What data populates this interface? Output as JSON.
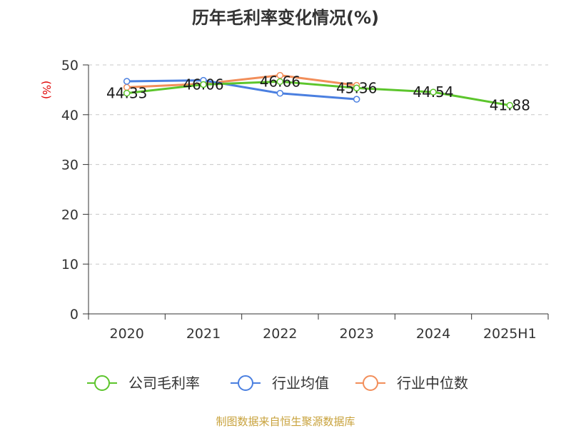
{
  "source_text": "制图数据来自恒生聚源数据库",
  "chart_data": {
    "type": "line",
    "title": "历年毛利率变化情况(%)",
    "ylabel": "(%)",
    "xlabel": "",
    "categories": [
      "2020",
      "2021",
      "2022",
      "2023",
      "2024",
      "2025H1"
    ],
    "ylim": [
      0,
      50
    ],
    "yticks": [
      0,
      10,
      20,
      30,
      40,
      50
    ],
    "grid": true,
    "legend_position": "bottom",
    "series": [
      {
        "name": "公司毛利率",
        "color": "#5cc52c",
        "values": [
          44.33,
          46.06,
          46.66,
          45.36,
          44.54,
          41.88
        ],
        "show_labels": true
      },
      {
        "name": "行业均值",
        "color": "#4a7fe0",
        "values": [
          46.7,
          46.9,
          44.3,
          43.1,
          null,
          null
        ],
        "show_labels": false
      },
      {
        "name": "行业中位数",
        "color": "#f28e5a",
        "values": [
          45.5,
          46.2,
          47.9,
          45.9,
          null,
          null
        ],
        "show_labels": false
      }
    ]
  }
}
